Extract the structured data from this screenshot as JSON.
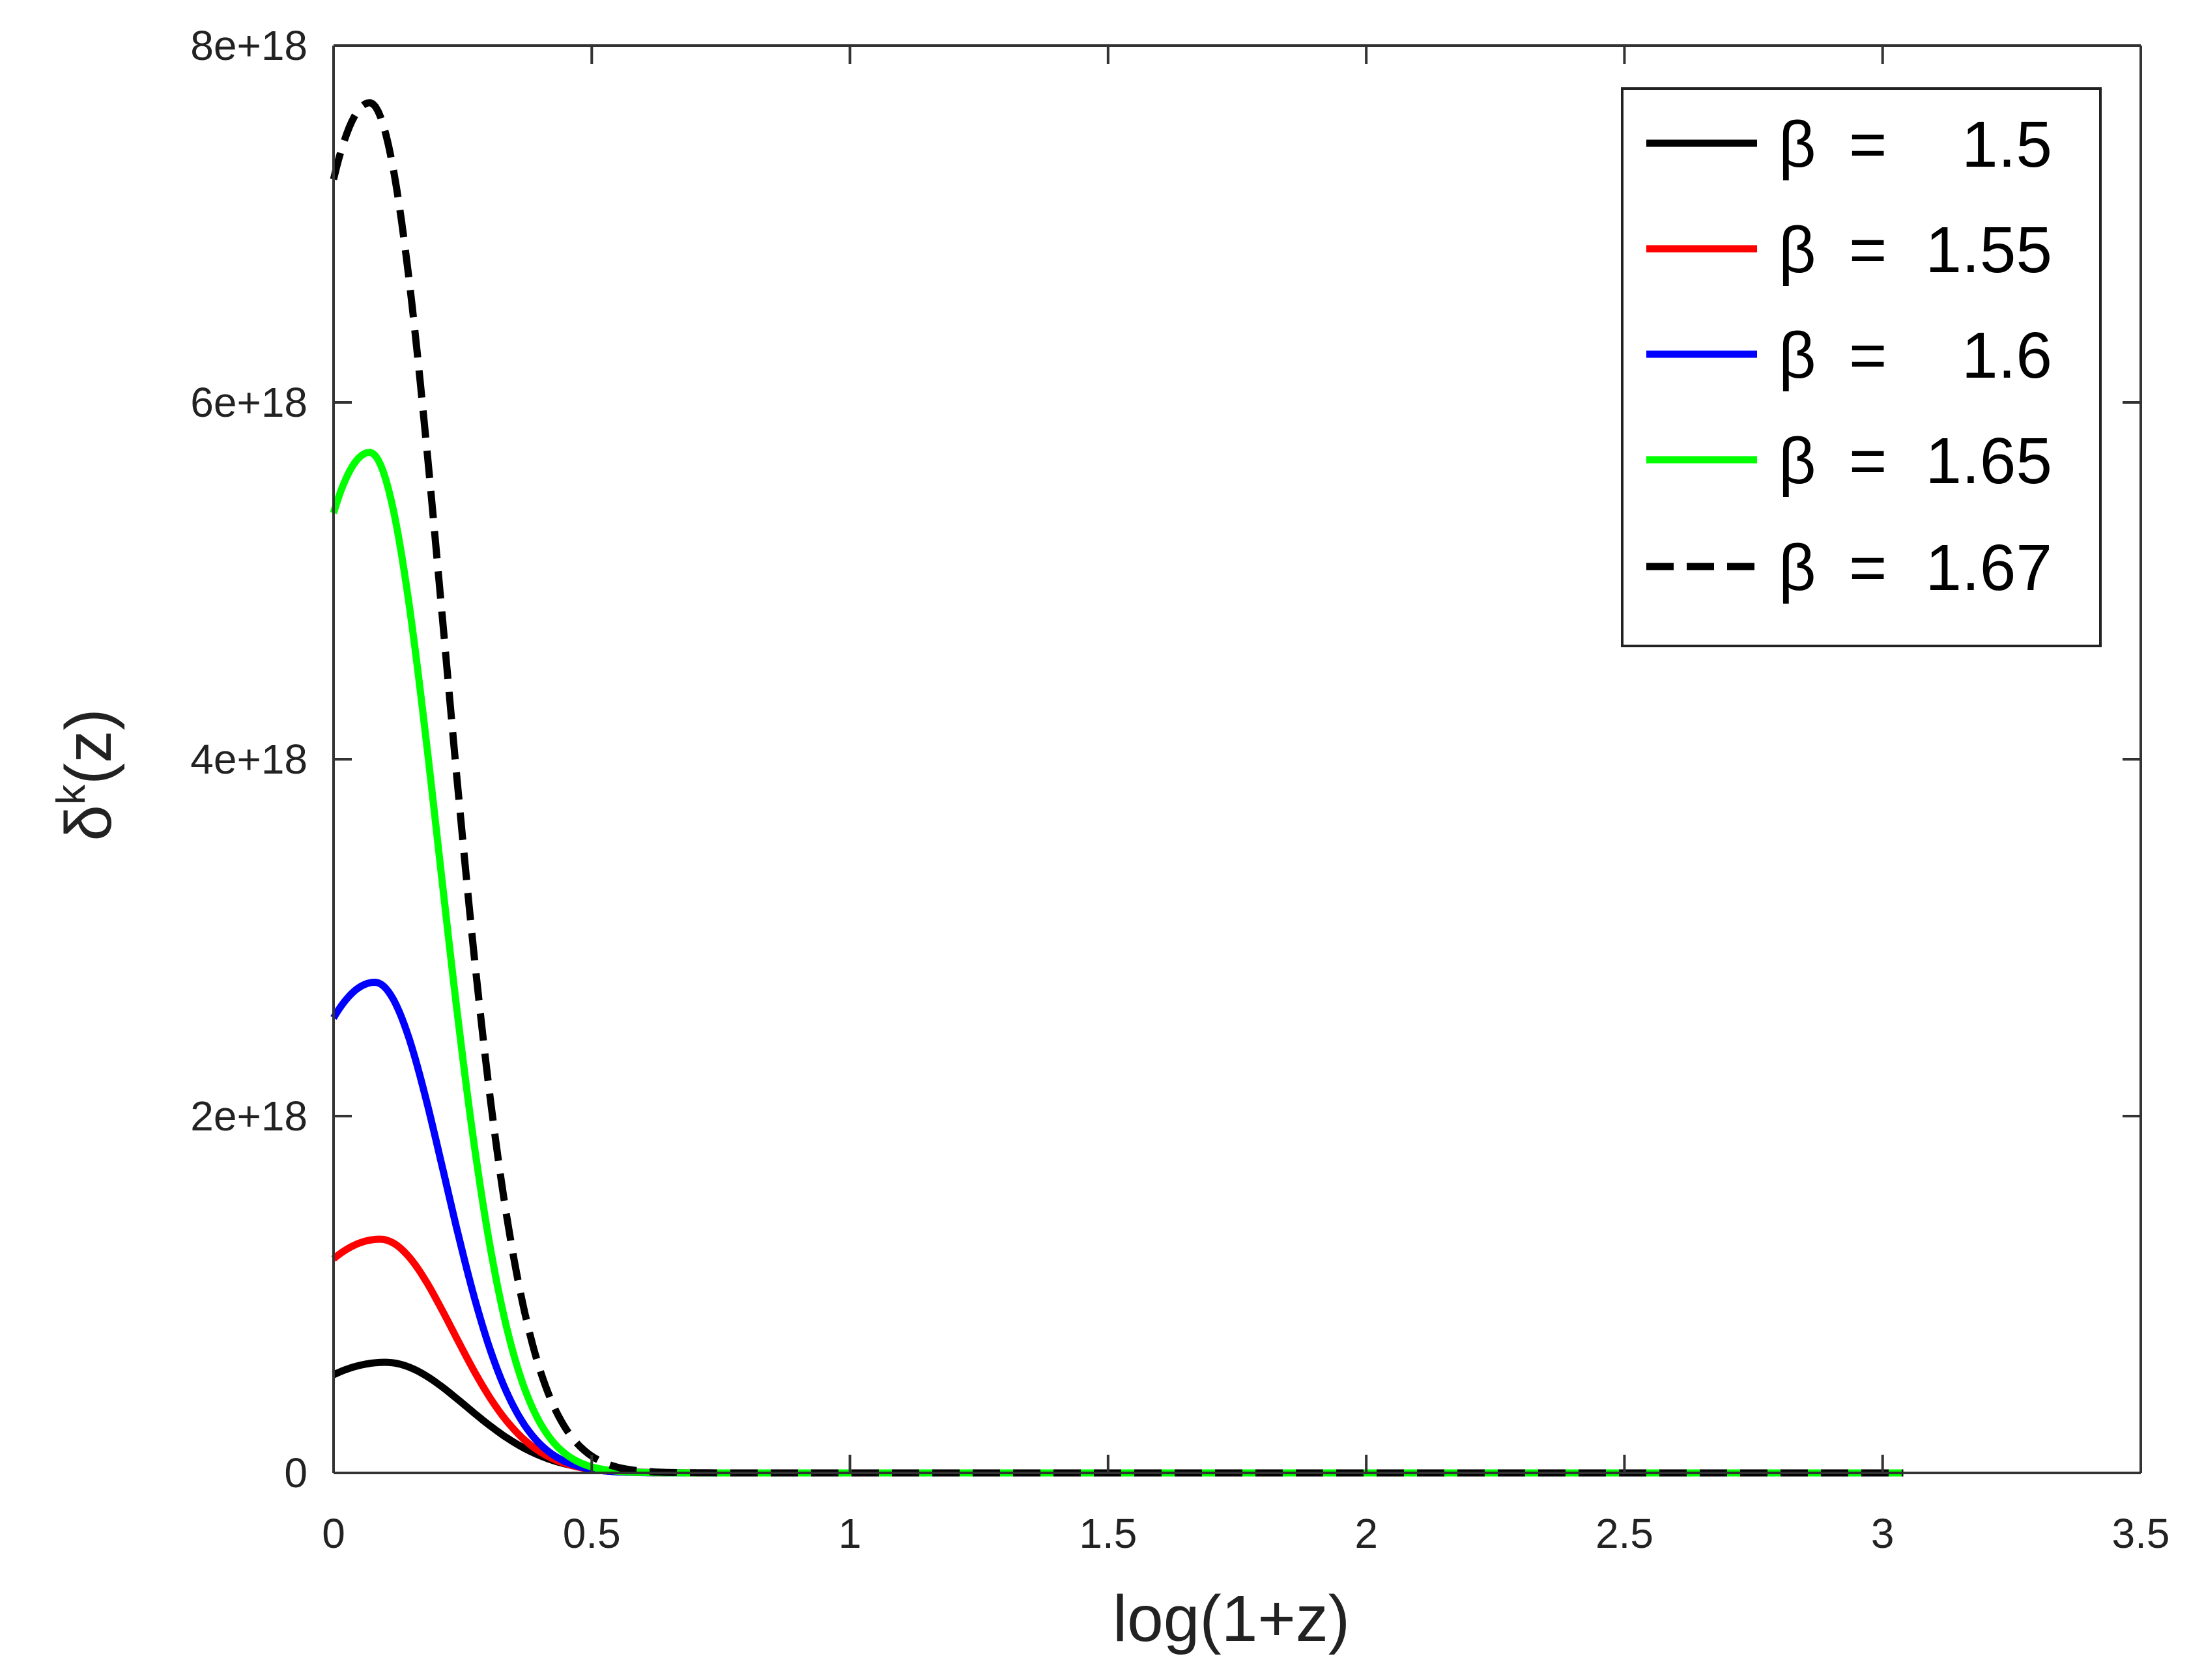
{
  "chart_data": {
    "type": "line",
    "title": "",
    "xlabel": "log(1+z)",
    "ylabel": "δ",
    "ylabel_superscript": "k",
    "ylabel_suffix": "(z)",
    "xlim": [
      0,
      3.5
    ],
    "ylim": [
      0,
      8e+18
    ],
    "xticks": [
      0,
      0.5,
      1,
      1.5,
      2,
      2.5,
      3,
      3.5
    ],
    "xtick_labels": [
      "0",
      "0.5",
      "1",
      "1.5",
      "2",
      "2.5",
      "3",
      "3.5"
    ],
    "yticks": [
      0,
      2e+18,
      4e+18,
      6e+18,
      8e+18
    ],
    "ytick_labels": [
      "0",
      "2e+18",
      "4e+18",
      "6e+18",
      "8e+18"
    ],
    "grid": false,
    "legend_position": "top-right",
    "x_end": 3.04,
    "series": [
      {
        "name": "β =  1.5",
        "beta": 1.5,
        "color": "#000000",
        "dash": "solid",
        "start": 5.5e+17,
        "peak": 6.2e+17,
        "peak_x": 0.1,
        "decay_width": 0.22
      },
      {
        "name": "β = 1.55",
        "beta": 1.55,
        "color": "#ff0000",
        "dash": "solid",
        "start": 1.2e+18,
        "peak": 1.31e+18,
        "peak_x": 0.09,
        "decay_width": 0.2
      },
      {
        "name": "β =  1.6",
        "beta": 1.6,
        "color": "#0000ff",
        "dash": "solid",
        "start": 2.55e+18,
        "peak": 2.75e+18,
        "peak_x": 0.08,
        "decay_width": 0.19
      },
      {
        "name": "β = 1.65",
        "beta": 1.65,
        "color": "#00ff00",
        "dash": "solid",
        "start": 5.38e+18,
        "peak": 5.72e+18,
        "peak_x": 0.07,
        "decay_width": 0.19
      },
      {
        "name": "β = 1.67",
        "beta": 1.67,
        "color": "#000000",
        "dash": "dashed",
        "start": 7.25e+18,
        "peak": 7.68e+18,
        "peak_x": 0.07,
        "decay_width": 0.205
      }
    ],
    "legend": [
      {
        "beta_symbol": "β",
        "equals": "=",
        "value": "1.5"
      },
      {
        "beta_symbol": "β",
        "equals": "=",
        "value": "1.55"
      },
      {
        "beta_symbol": "β",
        "equals": "=",
        "value": "1.6"
      },
      {
        "beta_symbol": "β",
        "equals": "=",
        "value": "1.65"
      },
      {
        "beta_symbol": "β",
        "equals": "=",
        "value": "1.67"
      }
    ]
  }
}
